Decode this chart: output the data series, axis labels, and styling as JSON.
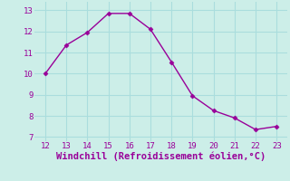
{
  "x": [
    12,
    13,
    14,
    15,
    16,
    17,
    18,
    19,
    20,
    21,
    22,
    23
  ],
  "y": [
    10.0,
    11.35,
    11.95,
    12.85,
    12.85,
    12.1,
    10.55,
    8.95,
    8.25,
    7.9,
    7.35,
    7.5
  ],
  "xlabel": "Windchill (Refroidissement éolien,°C)",
  "xlim": [
    11.5,
    23.5
  ],
  "ylim": [
    6.8,
    13.4
  ],
  "yticks": [
    7,
    8,
    9,
    10,
    11,
    12,
    13
  ],
  "xticks": [
    12,
    13,
    14,
    15,
    16,
    17,
    18,
    19,
    20,
    21,
    22,
    23
  ],
  "line_color": "#990099",
  "marker": "D",
  "marker_size": 2.5,
  "line_width": 1.0,
  "bg_color": "#cceee8",
  "grid_color": "#aadddd",
  "xlabel_fontsize": 7.5,
  "tick_fontsize": 6.5,
  "tick_color": "#990099"
}
